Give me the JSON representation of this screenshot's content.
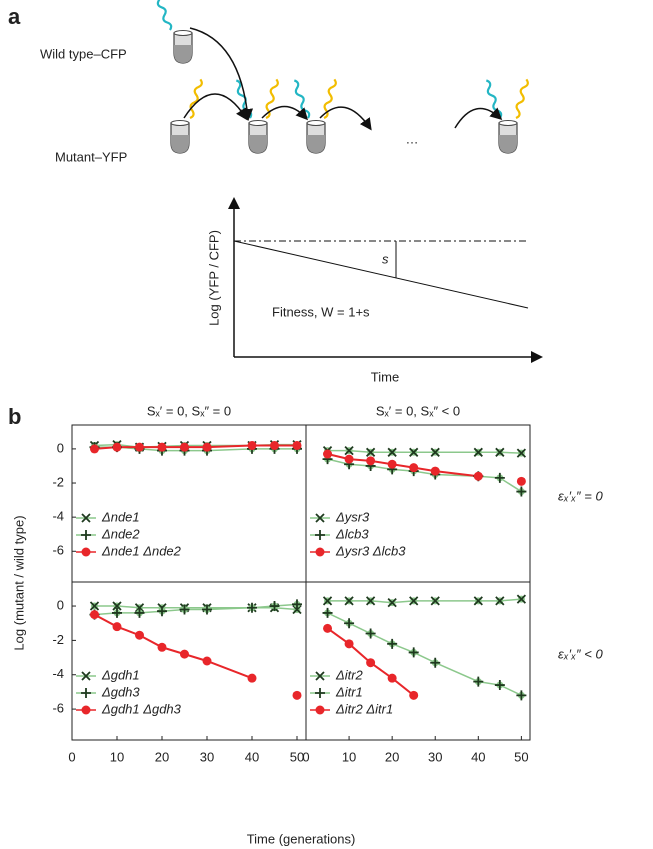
{
  "panel_a": {
    "label": "a",
    "wild_type": "Wild type–CFP",
    "mutant": "Mutant–YFP",
    "ellipsis": "…",
    "y_label": "Log (YFP / CFP)",
    "s": "s",
    "fitness": "Fitness, W = 1+s",
    "x_label": "Time"
  },
  "panel_b": {
    "label": "b",
    "y_label": "Log (mutant / wild type)",
    "x_label": "Time (generations)"
  },
  "chart_data": [
    {
      "type": "line",
      "title": "Sₓ′ = 0, Sₓ″ = 0",
      "x": [
        5,
        10,
        15,
        20,
        25,
        30,
        40,
        45,
        50
      ],
      "xlim": [
        0,
        52
      ],
      "ylim": [
        -7.8,
        1.4
      ],
      "yticks": [
        0,
        -2,
        -4,
        -6
      ],
      "series": [
        {
          "name": "Δnde1",
          "color": "#8cc88c",
          "marker": "x",
          "values": [
            0.2,
            0.25,
            0.1,
            0.15,
            0.2,
            0.2,
            0.2,
            0.25,
            0.25
          ]
        },
        {
          "name": "Δnde2",
          "color": "#8cc88c",
          "marker": "plus",
          "values": [
            0.1,
            0.1,
            0,
            -0.1,
            -0.1,
            -0.1,
            0,
            0,
            0
          ]
        },
        {
          "name": "Δnde1  Δnde2",
          "color": "#e8262a",
          "marker": "circle",
          "values": [
            0,
            0.1,
            0.1,
            0.1,
            0.1,
            0.1,
            0.2,
            0.2,
            0.2
          ]
        }
      ]
    },
    {
      "type": "line",
      "title": "Sₓ′ = 0, Sₓ″ < 0",
      "annotation": "εₓ′ₓ″ = 0",
      "x": [
        5,
        10,
        15,
        20,
        25,
        30,
        40,
        45,
        50
      ],
      "xlim": [
        0,
        52
      ],
      "ylim": [
        -7.8,
        1.4
      ],
      "series": [
        {
          "name": "Δysr3",
          "color": "#8cc88c",
          "marker": "x",
          "values": [
            -0.1,
            -0.1,
            -0.2,
            -0.2,
            -0.2,
            -0.2,
            -0.2,
            -0.2,
            -0.25
          ]
        },
        {
          "name": "Δlcb3",
          "color": "#8cc88c",
          "marker": "plus",
          "values": [
            -0.6,
            -0.9,
            -1,
            -1.2,
            -1.3,
            -1.5,
            -1.6,
            -1.7,
            -2.5
          ]
        },
        {
          "name": "Δysr3 Δlcb3",
          "color": "#e8262a",
          "marker": "circle",
          "values": [
            -0.3,
            -0.6,
            -0.7,
            -0.9,
            -1.1,
            -1.3,
            -1.6,
            null,
            -1.9
          ]
        }
      ]
    },
    {
      "type": "line",
      "x": [
        5,
        10,
        15,
        20,
        25,
        30,
        40,
        45,
        50
      ],
      "xlim": [
        0,
        52
      ],
      "ylim": [
        -7.8,
        1.4
      ],
      "yticks": [
        0,
        -2,
        -4,
        -6
      ],
      "xticks": [
        0,
        10,
        20,
        30,
        40,
        50
      ],
      "series": [
        {
          "name": "Δgdh1",
          "color": "#8cc88c",
          "marker": "x",
          "values": [
            0,
            0,
            -0.1,
            -0.1,
            -0.1,
            -0.1,
            -0.1,
            -0.1,
            -0.2
          ]
        },
        {
          "name": "Δgdh3",
          "color": "#8cc88c",
          "marker": "plus",
          "values": [
            -0.5,
            -0.4,
            -0.4,
            -0.3,
            -0.2,
            -0.2,
            -0.1,
            0,
            0.1
          ]
        },
        {
          "name": "Δgdh1  Δgdh3",
          "color": "#e8262a",
          "marker": "circle",
          "values": [
            -0.5,
            -1.2,
            -1.7,
            -2.4,
            -2.8,
            -3.2,
            -4.2,
            null,
            -5.2
          ]
        }
      ]
    },
    {
      "type": "line",
      "annotation": "εₓ′ₓ″ < 0",
      "x": [
        5,
        10,
        15,
        20,
        25,
        30,
        40,
        45,
        50
      ],
      "xlim": [
        0,
        52
      ],
      "ylim": [
        -7.8,
        1.4
      ],
      "xticks": [
        0,
        10,
        20,
        30,
        40,
        50
      ],
      "series": [
        {
          "name": "Δitr2",
          "color": "#8cc88c",
          "marker": "x",
          "values": [
            0.3,
            0.3,
            0.3,
            0.2,
            0.3,
            0.3,
            0.3,
            0.3,
            0.4
          ]
        },
        {
          "name": "Δitr1",
          "color": "#8cc88c",
          "marker": "plus",
          "values": [
            -0.4,
            -1,
            -1.6,
            -2.2,
            -2.7,
            -3.3,
            -4.4,
            -4.6,
            -5.2
          ]
        },
        {
          "name": "Δitr2 Δitr1",
          "color": "#e8262a",
          "marker": "circle",
          "values": [
            -1.3,
            -2.2,
            -3.3,
            -4.2,
            -5.2,
            null,
            null,
            null,
            null
          ]
        }
      ]
    }
  ]
}
